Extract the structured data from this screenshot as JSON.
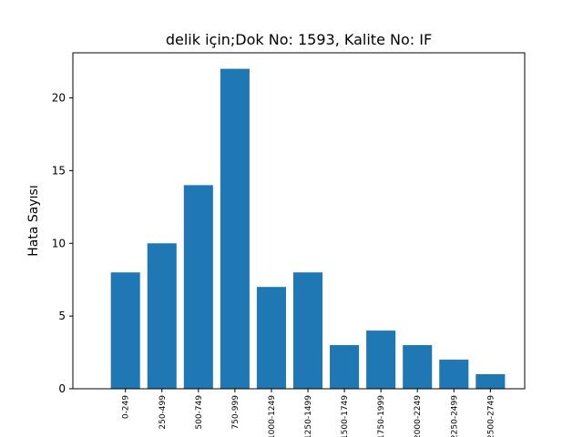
{
  "chart_data": {
    "type": "bar",
    "title": "delik için;Dok No: 1593, Kalite No: IF",
    "xlabel": "",
    "ylabel": "Hata Sayısı",
    "categories": [
      "0-249",
      "250-499",
      "500-749",
      "750-999",
      "1000-1249",
      "1250-1499",
      "1500-1749",
      "1750-1999",
      "2000-2249",
      "2250-2499",
      "2500-2749"
    ],
    "values": [
      8,
      10,
      14,
      22,
      7,
      8,
      3,
      4,
      3,
      2,
      1
    ],
    "ylim": [
      0,
      23.1
    ],
    "yticks": [
      0,
      5,
      10,
      15,
      20
    ],
    "bar_color": "#1f77b4",
    "grid": false
  }
}
